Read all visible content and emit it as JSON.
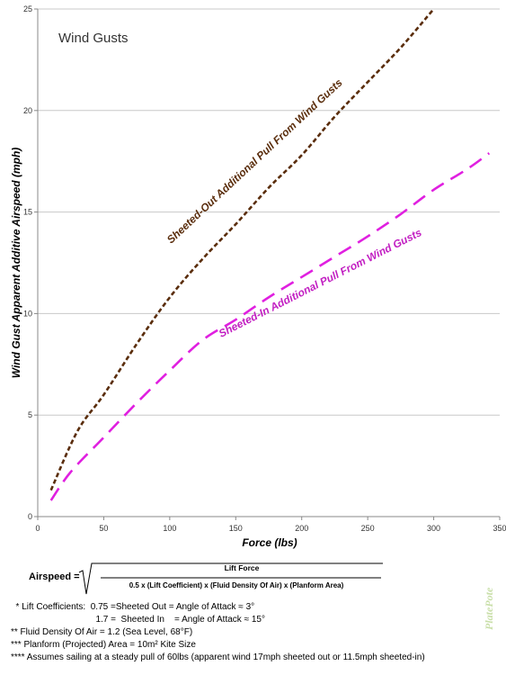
{
  "chart_data": {
    "type": "line",
    "title": "Wind Gusts",
    "xlabel": "Force (lbs)",
    "ylabel": "Wind Gust Apparent Additive Airspeed (mph)",
    "xlim": [
      0,
      350
    ],
    "ylim": [
      0,
      25
    ],
    "xticks": [
      "0",
      "50",
      "100",
      "150",
      "200",
      "250",
      "300",
      "350"
    ],
    "yticks": [
      "0",
      "5",
      "10",
      "15",
      "20",
      "25"
    ],
    "grid": "horizontal",
    "series": [
      {
        "name": "Sheeted-Out Additional Pull From Wind Gusts",
        "color": "#5a2d0c",
        "dash": "short",
        "x": [
          10,
          30,
          50,
          75,
          100,
          125,
          150,
          175,
          200,
          225,
          250,
          275,
          300
        ],
        "y": [
          1.3,
          4.2,
          6.0,
          8.5,
          10.8,
          12.7,
          14.4,
          16.2,
          17.8,
          19.7,
          21.4,
          23.1,
          25.0
        ]
      },
      {
        "name": "Sheeted-In Additional Pull From Wind Gusts",
        "color": "#e020e0",
        "dash": "long",
        "x": [
          10,
          25,
          50,
          75,
          100,
          125,
          150,
          175,
          200,
          225,
          250,
          275,
          300,
          325,
          342
        ],
        "y": [
          0.8,
          2.2,
          3.9,
          5.6,
          7.2,
          8.7,
          9.7,
          10.8,
          11.8,
          12.8,
          13.8,
          14.9,
          16.1,
          17.1,
          17.9
        ]
      }
    ]
  },
  "formula": {
    "lhs": "Airspeed =",
    "numerator": "Lift Force",
    "denominator": "0.5 x (Lift Coefficient) x (Fluid Density Of Air) x (Planform  Area)"
  },
  "notes": [
    "  * Lift Coefficients:  0.75 =Sheeted Out = Angle of Attack ≈ 3°",
    "                                  1.7 =  Sheeted In    = Angle of Attack ≈ 15°",
    "** Fluid Density Of Air = 1.2 (Sea Level, 68°F)",
    "*** Planform (Projected) Area = 10m² Kite Size",
    "**** Assumes sailing at a steady pull of 60lbs (apparent wind 17mph sheeted out or 11.5mph sheeted-in)"
  ],
  "watermark": "PlatePote"
}
